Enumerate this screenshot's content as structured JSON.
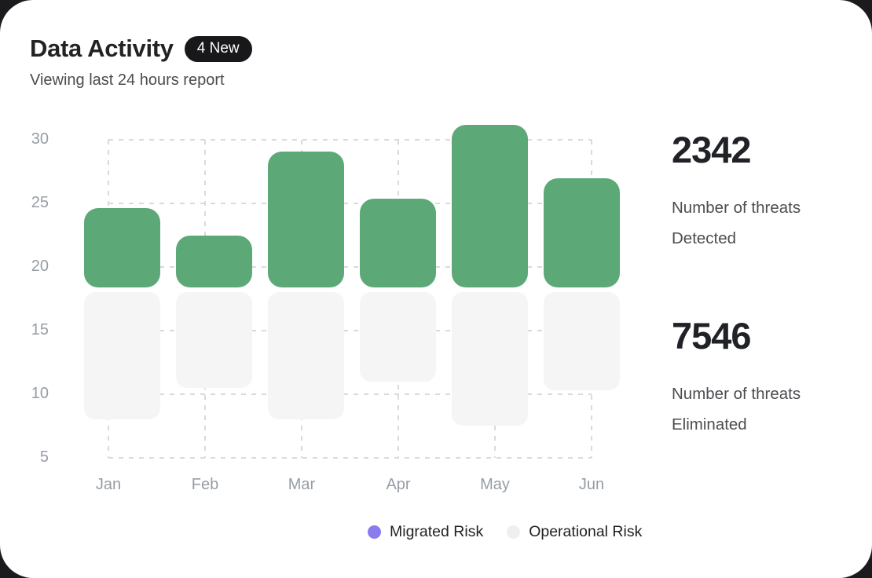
{
  "colors": {
    "page_background": "#1b1b1d",
    "card_background": "#ffffff",
    "bar_green": "#5ca877",
    "bar_gray": "#f5f5f5",
    "grid_line": "#dadada",
    "axis_label": "#979da5",
    "badge_background": "#18181a",
    "badge_text": "#ffffff"
  },
  "header": {
    "title": "Data Activity",
    "badge": "4 New",
    "subtitle": "Viewing last 24 hours report"
  },
  "chart_data": {
    "type": "bar",
    "subtype": "floating-column-pairs",
    "title": "Data Activity",
    "categories": [
      "Jan",
      "Feb",
      "Mar",
      "Apr",
      "May",
      "Jun"
    ],
    "y_ticks": [
      30,
      25,
      20,
      15,
      10,
      5
    ],
    "ylim": [
      5,
      32
    ],
    "grid": "dashed box between first and last category centers; horizontal dashed line at each y tick, vertical dashed line at each category center; grid drawn behind bars",
    "legend_position": "bottom-center",
    "series": [
      {
        "name": "Migrated Risk",
        "color": "#5ca877",
        "ranges": [
          [
            18.4,
            24.6
          ],
          [
            18.4,
            22.5
          ],
          [
            18.4,
            29.1
          ],
          [
            18.4,
            25.4
          ],
          [
            18.4,
            31.2
          ],
          [
            18.4,
            27.0
          ]
        ]
      },
      {
        "name": "Operational Risk",
        "color": "#f5f5f5",
        "ranges": [
          [
            8.0,
            18.0
          ],
          [
            10.5,
            18.0
          ],
          [
            8.0,
            18.0
          ],
          [
            11.0,
            18.0
          ],
          [
            7.5,
            18.0
          ],
          [
            10.3,
            18.0
          ]
        ]
      }
    ]
  },
  "legend": {
    "items": [
      {
        "label": "Migrated Risk",
        "color": "#8a7bee"
      },
      {
        "label": "Operational Risk",
        "color": "#efefef"
      }
    ]
  },
  "stats": [
    {
      "value": "2342",
      "label_line1": "Number of threats",
      "label_line2": "Detected"
    },
    {
      "value": "7546",
      "label_line1": "Number of threats",
      "label_line2": "Eliminated"
    }
  ]
}
